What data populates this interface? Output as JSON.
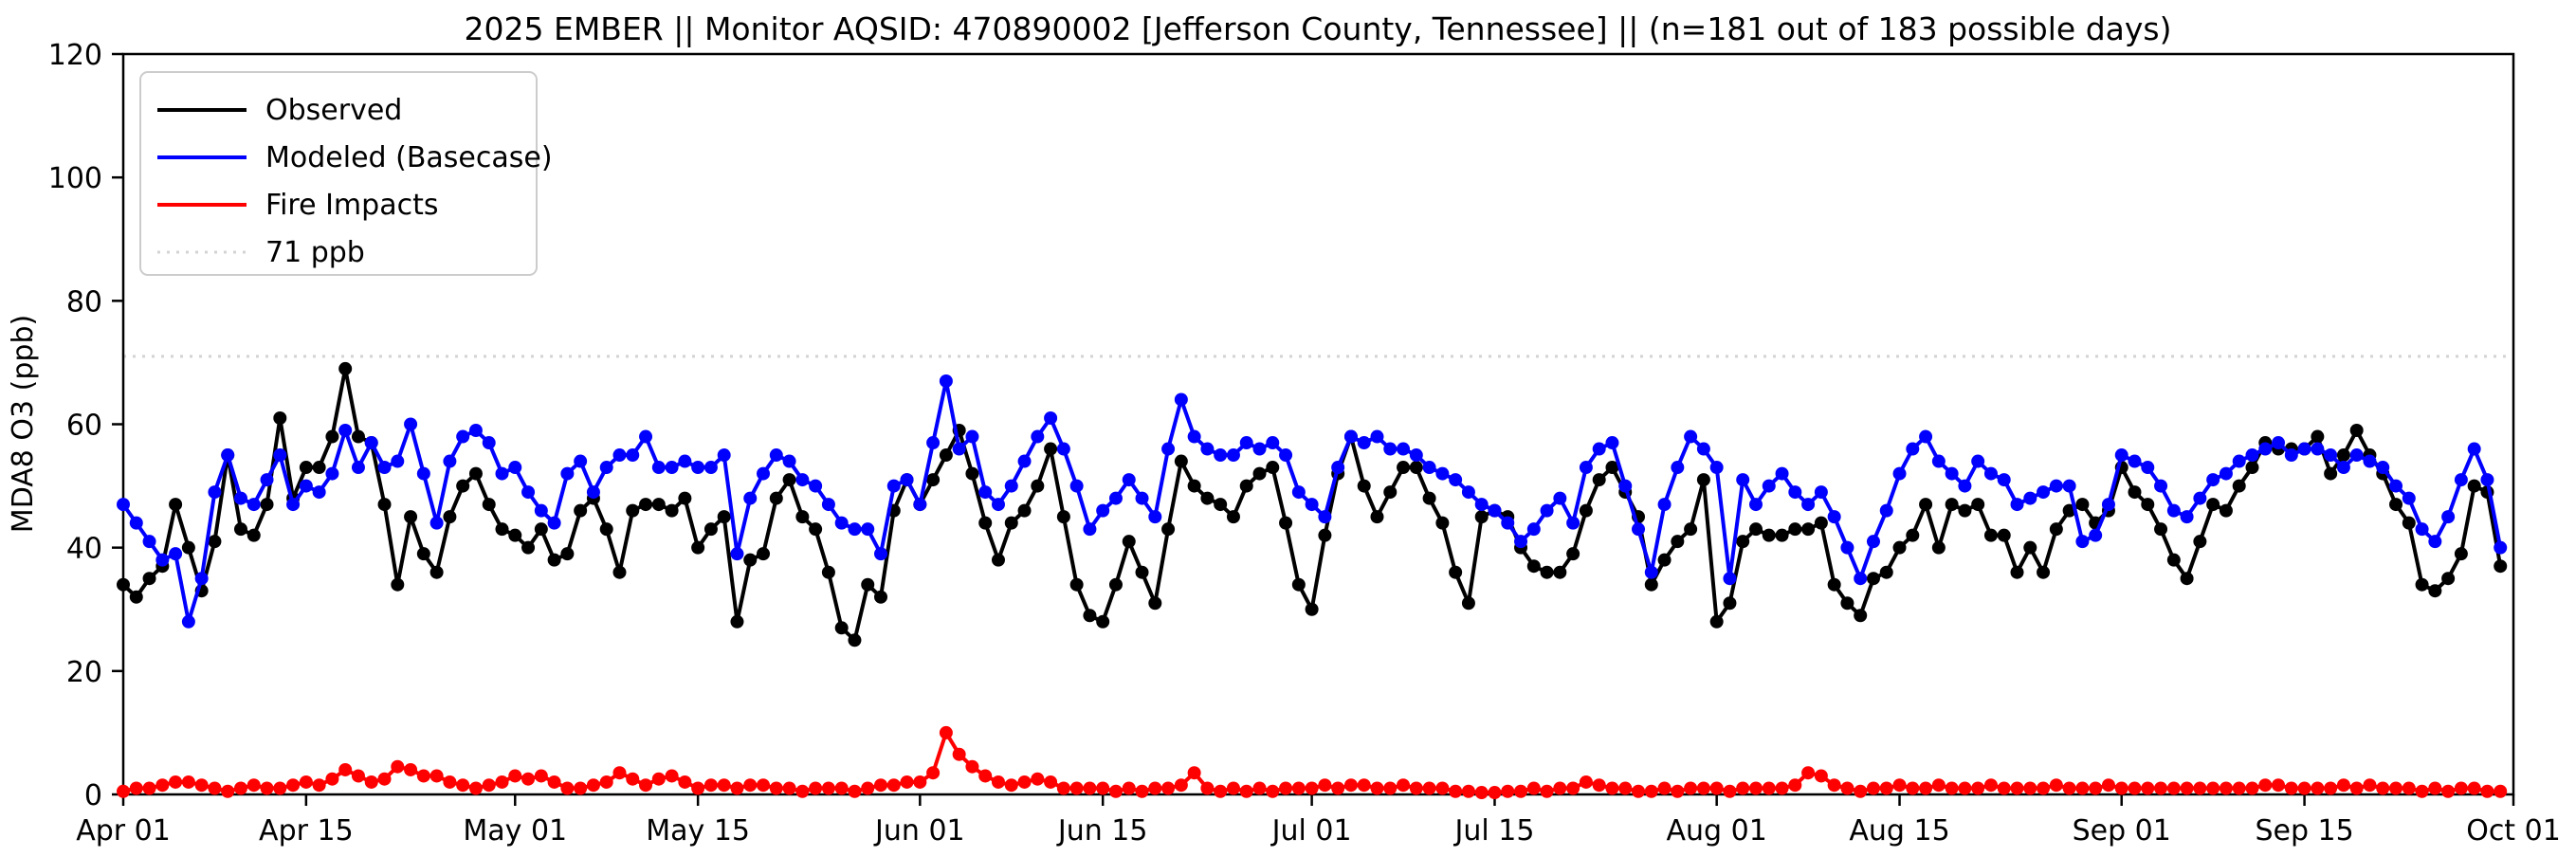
{
  "window": {
    "title": "2025 EMBER || Monitor AQSID: 470890002 [Jefferson County, Tennessee] || (n=181 out of 183 possible days)"
  },
  "chart_data": {
    "type": "line",
    "title": "2025 EMBER || Monitor AQSID: 470890002 [Jefferson County, Tennessee] || (n=181 out of 183 possible days)",
    "xlabel": "",
    "ylabel": "MDA8 O3 (ppb)",
    "ylim": [
      0,
      120
    ],
    "y_ticks": [
      0,
      20,
      40,
      60,
      80,
      100,
      120
    ],
    "grid": false,
    "legend_position": "upper left",
    "x_start_date": "Apr 01",
    "x_end_date": "Oct 01",
    "n_days": 183,
    "x_tick_days": [
      0,
      14,
      30,
      44,
      61,
      75,
      91,
      105,
      122,
      136,
      153,
      167,
      183
    ],
    "x_tick_labels": [
      "Apr 01",
      "Apr 15",
      "May 01",
      "May 15",
      "Jun 01",
      "Jun 15",
      "Jul 01",
      "Jul 15",
      "Aug 01",
      "Aug 15",
      "Sep 01",
      "Sep 15",
      "Oct 01"
    ],
    "reference_line": {
      "label": "71 ppb",
      "value": 71,
      "color": "#d3d3d3",
      "style": "dotted"
    },
    "series": [
      {
        "name": "Observed",
        "color": "#000000",
        "marker": "circle",
        "values": [
          34,
          32,
          35,
          37,
          47,
          40,
          33,
          41,
          55,
          43,
          42,
          47,
          61,
          48,
          53,
          53,
          58,
          69,
          58,
          57,
          47,
          34,
          45,
          39,
          36,
          45,
          50,
          52,
          47,
          43,
          42,
          40,
          43,
          38,
          39,
          46,
          48,
          43,
          36,
          46,
          47,
          47,
          46,
          48,
          40,
          43,
          45,
          28,
          38,
          39,
          48,
          51,
          45,
          43,
          36,
          27,
          25,
          34,
          32,
          46,
          51,
          47,
          51,
          55,
          59,
          52,
          44,
          38,
          44,
          46,
          50,
          56,
          45,
          34,
          29,
          28,
          34,
          41,
          36,
          31,
          43,
          54,
          50,
          48,
          47,
          45,
          50,
          52,
          53,
          44,
          34,
          30,
          42,
          52,
          58,
          50,
          45,
          49,
          53,
          53,
          48,
          44,
          36,
          31,
          45,
          46,
          45,
          40,
          37,
          36,
          36,
          39,
          46,
          51,
          53,
          49,
          45,
          34,
          38,
          41,
          43,
          51,
          28,
          31,
          41,
          43,
          42,
          42,
          43,
          43,
          44,
          34,
          31,
          29,
          35,
          36,
          40,
          42,
          47,
          40,
          47,
          46,
          47,
          42,
          42,
          36,
          40,
          36,
          43,
          46,
          47,
          44,
          46,
          53,
          49,
          47,
          43,
          38,
          35,
          41,
          47,
          46,
          50,
          53,
          57,
          56,
          56,
          56,
          58,
          52,
          55,
          59,
          55,
          52,
          47,
          44,
          34,
          33,
          35,
          39,
          50,
          49,
          37
        ]
      },
      {
        "name": "Modeled (Basecase)",
        "color": "#0000ff",
        "marker": "circle",
        "values": [
          47,
          44,
          41,
          38,
          39,
          28,
          35,
          49,
          55,
          48,
          47,
          51,
          55,
          47,
          50,
          49,
          52,
          59,
          53,
          57,
          53,
          54,
          60,
          52,
          44,
          54,
          58,
          59,
          57,
          52,
          53,
          49,
          46,
          44,
          52,
          54,
          49,
          53,
          55,
          55,
          58,
          53,
          53,
          54,
          53,
          53,
          55,
          39,
          48,
          52,
          55,
          54,
          51,
          50,
          47,
          44,
          43,
          43,
          39,
          50,
          51,
          47,
          57,
          67,
          56,
          58,
          49,
          47,
          50,
          54,
          58,
          61,
          56,
          50,
          43,
          46,
          48,
          51,
          48,
          45,
          56,
          64,
          58,
          56,
          55,
          55,
          57,
          56,
          57,
          55,
          49,
          47,
          45,
          53,
          58,
          57,
          58,
          56,
          56,
          55,
          53,
          52,
          51,
          49,
          47,
          46,
          44,
          41,
          43,
          46,
          48,
          44,
          53,
          56,
          57,
          50,
          43,
          36,
          47,
          53,
          58,
          56,
          53,
          35,
          51,
          47,
          50,
          52,
          49,
          47,
          49,
          45,
          40,
          35,
          41,
          46,
          52,
          56,
          58,
          54,
          52,
          50,
          54,
          52,
          51,
          47,
          48,
          49,
          50,
          50,
          41,
          42,
          47,
          55,
          54,
          53,
          50,
          46,
          45,
          48,
          51,
          52,
          54,
          55,
          56,
          57,
          55,
          56,
          56,
          55,
          53,
          55,
          54,
          53,
          50,
          48,
          43,
          41,
          45,
          51,
          56,
          51,
          40
        ]
      },
      {
        "name": "Fire Impacts",
        "color": "#ff0000",
        "marker": "circle",
        "values": [
          0.5,
          1,
          1,
          1.5,
          2,
          2,
          1.5,
          1,
          0.5,
          1,
          1.5,
          1,
          1,
          1.5,
          2,
          1.5,
          2.5,
          4,
          3,
          2,
          2.5,
          4.5,
          4,
          3,
          3,
          2,
          1.5,
          1,
          1.5,
          2,
          3,
          2.5,
          3,
          2,
          1,
          1,
          1.5,
          2,
          3.5,
          2.5,
          1.5,
          2.5,
          3,
          2,
          1,
          1.5,
          1.5,
          1,
          1.5,
          1.5,
          1,
          1,
          0.5,
          1,
          1,
          1,
          0.5,
          1,
          1.5,
          1.5,
          2,
          2,
          3.5,
          10,
          6.5,
          4.5,
          3,
          2,
          1.5,
          2,
          2.5,
          2,
          1,
          1,
          1,
          1,
          0.5,
          1,
          0.5,
          1,
          1,
          1.5,
          3.5,
          1,
          0.5,
          1,
          0.5,
          1,
          0.5,
          1,
          1,
          1,
          1.5,
          1,
          1.5,
          1.5,
          1,
          1,
          1.5,
          1,
          1,
          1,
          0.5,
          0.5,
          0.3,
          0.3,
          0.5,
          0.5,
          1,
          0.5,
          1,
          1,
          2,
          1.5,
          1,
          1,
          0.5,
          0.5,
          1,
          0.5,
          1,
          1,
          1,
          0.5,
          1,
          1,
          1,
          1,
          1.5,
          3.5,
          3,
          1.5,
          1,
          0.5,
          1,
          1,
          1.5,
          1,
          1,
          1.5,
          1,
          1,
          1,
          1.5,
          1,
          1,
          1,
          1,
          1.5,
          1,
          1,
          1,
          1.5,
          1,
          1,
          1,
          1,
          1,
          1,
          1,
          1,
          1,
          1,
          1,
          1.5,
          1.5,
          1,
          1,
          1,
          1,
          1.5,
          1,
          1.5,
          1,
          1,
          1,
          0.5,
          1,
          0.5,
          1,
          1,
          0.5,
          0.5
        ]
      }
    ]
  }
}
